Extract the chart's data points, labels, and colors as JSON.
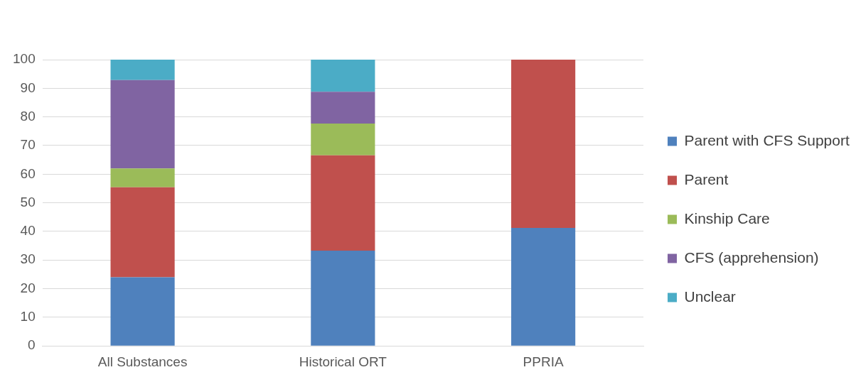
{
  "chart_data": {
    "type": "bar",
    "stacked": true,
    "categories": [
      "All Substances",
      "Historical ORT",
      "PPRIA"
    ],
    "series": [
      {
        "name": "Parent with CFS Support",
        "color": "#4f81bd",
        "values": [
          24,
          33.3,
          41.2
        ]
      },
      {
        "name": "Parent",
        "color": "#c0504d",
        "values": [
          31.4,
          33.3,
          58.8
        ]
      },
      {
        "name": "Kinship Care",
        "color": "#9bbb59",
        "values": [
          6.6,
          11.1,
          0
        ]
      },
      {
        "name": "CFS (apprehension)",
        "color": "#8064a2",
        "values": [
          30.9,
          11.1,
          0
        ]
      },
      {
        "name": "Unclear",
        "color": "#4bacc6",
        "values": [
          7.1,
          11.2,
          0
        ]
      }
    ],
    "ylim": [
      0,
      100
    ],
    "yticks": [
      0,
      10,
      20,
      30,
      40,
      50,
      60,
      70,
      80,
      90,
      100
    ],
    "grid": "y",
    "legend": "right"
  }
}
